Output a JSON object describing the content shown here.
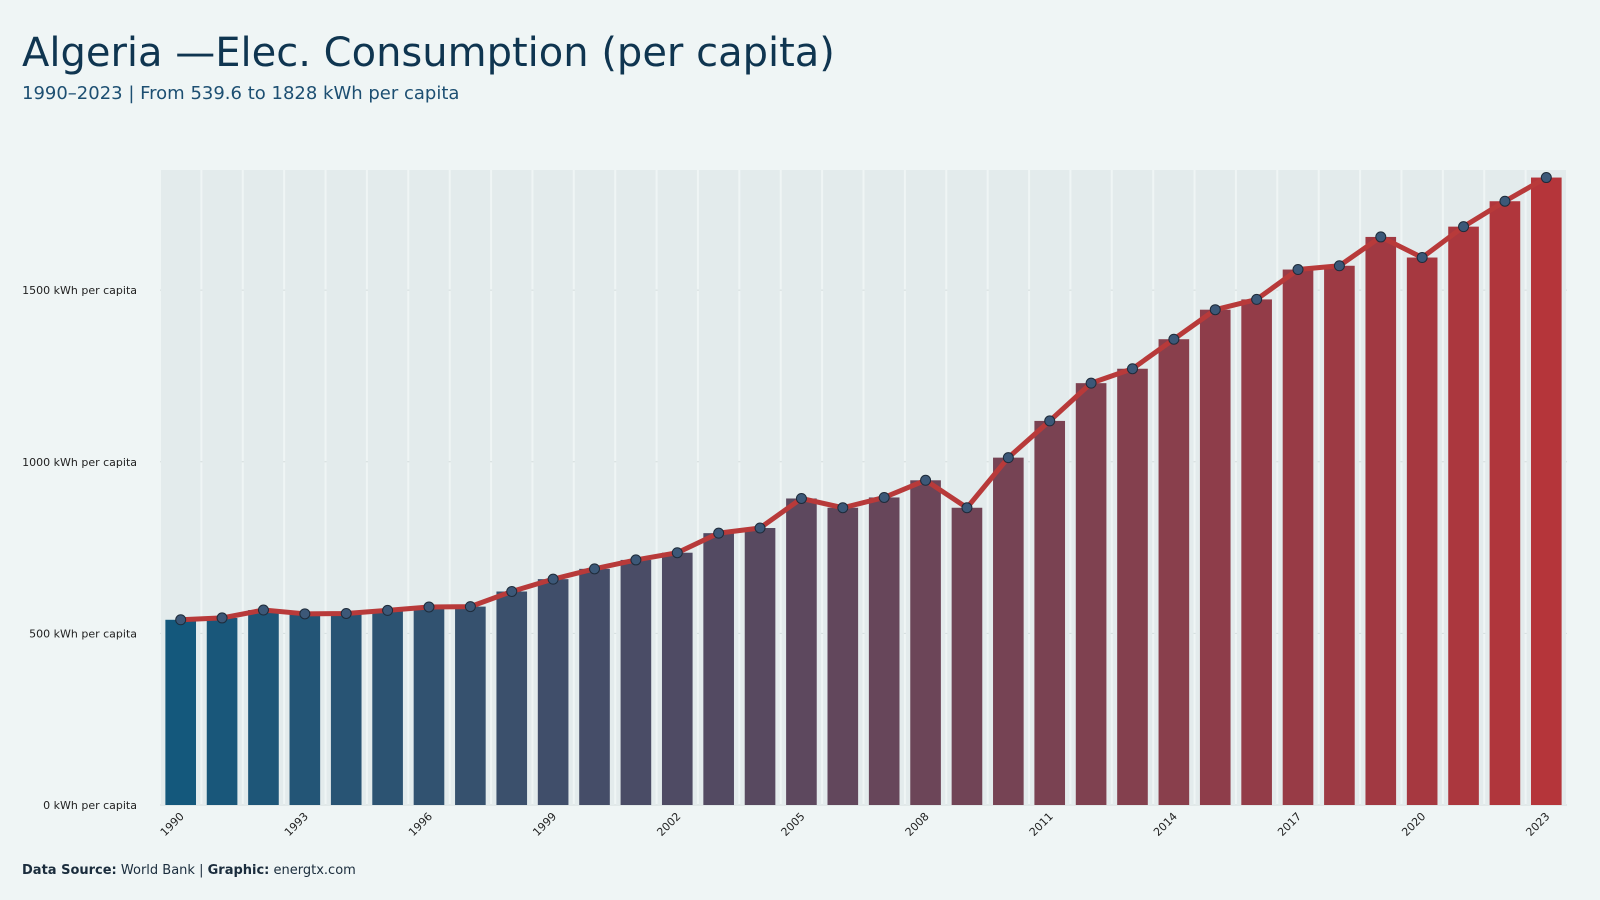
{
  "chart_data": {
    "type": "bar-line",
    "title": "Algeria —Elec. Consumption (per capita)",
    "subtitle": "1990–2023 | From 539.6 to 1828 kWh per capita",
    "categories": [
      "1990",
      null,
      null,
      "1993",
      null,
      null,
      "1996",
      null,
      null,
      "1999",
      null,
      null,
      "2002",
      null,
      null,
      "2005",
      null,
      null,
      "2008",
      null,
      null,
      "2011",
      null,
      null,
      "2014",
      null,
      null,
      "2017",
      null,
      null,
      "2020",
      null,
      null,
      "2023"
    ],
    "values": [
      539.6,
      545,
      568,
      557,
      558,
      567,
      577,
      578,
      622,
      658,
      688,
      714,
      735,
      792,
      807,
      893,
      866,
      896,
      946,
      866,
      1012,
      1119,
      1229,
      1271,
      1357,
      1443,
      1473,
      1560,
      1571,
      1655,
      1595,
      1685,
      1759,
      1828
    ],
    "bar_colors": [
      "#14587c",
      "#b5353a"
    ],
    "line_color": "#b83a3a",
    "marker_color": "#3c5878",
    "ylim": [
      0,
      1850
    ],
    "yticks": [
      {
        "value": 0,
        "label": "0 kWh per capita"
      },
      {
        "value": 500,
        "label": "500 kWh per capita"
      },
      {
        "value": 1000,
        "label": "1000 kWh per capita"
      },
      {
        "value": 1500,
        "label": "1500 kWh per capita"
      }
    ],
    "grid": true,
    "source_label": "Data Source:",
    "source": "World Bank",
    "graphic_label": "Graphic:",
    "graphic": "energtx.com"
  }
}
